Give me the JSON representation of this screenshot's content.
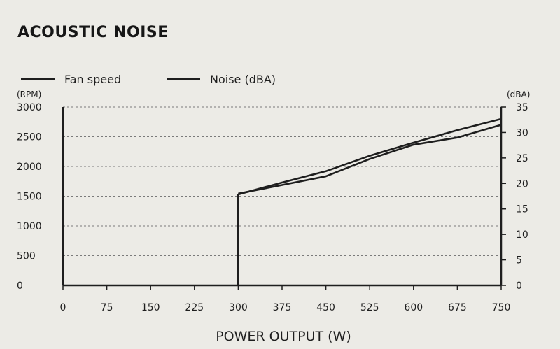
{
  "chart_data": {
    "type": "line",
    "title": "ACOUSTIC NOISE",
    "xlabel": "POWER OUTPUT (W)",
    "ylabel_left": "(RPM)",
    "ylabel_right": "(dBA)",
    "xlim": [
      0,
      750
    ],
    "ylim_left": [
      0,
      3000
    ],
    "ylim_right": [
      0,
      35
    ],
    "x_ticks": [
      "0",
      "75",
      "150",
      "225",
      "300",
      "375",
      "450",
      "525",
      "600",
      "675",
      "750"
    ],
    "y_ticks_left": [
      "0",
      "500",
      "1000",
      "1500",
      "2000",
      "2500",
      "3000"
    ],
    "y_ticks_right": [
      "0",
      "5",
      "10",
      "15",
      "20",
      "25",
      "30",
      "35"
    ],
    "grid": "horizontal dashed",
    "legend_position": "top-left",
    "series": [
      {
        "name": "Fan speed",
        "axis": "left",
        "x": [
          0,
          0,
          300,
          300,
          375,
          450,
          525,
          600,
          675,
          750
        ],
        "values": [
          0,
          3000,
          0,
          1530,
          1730,
          1920,
          2180,
          2400,
          2610,
          2800
        ]
      },
      {
        "name": "Noise (dBA)",
        "axis": "right",
        "x": [
          300,
          375,
          450,
          525,
          600,
          675,
          750
        ],
        "values": [
          18.0,
          19.7,
          21.4,
          24.8,
          27.6,
          29.0,
          31.5
        ]
      }
    ]
  }
}
